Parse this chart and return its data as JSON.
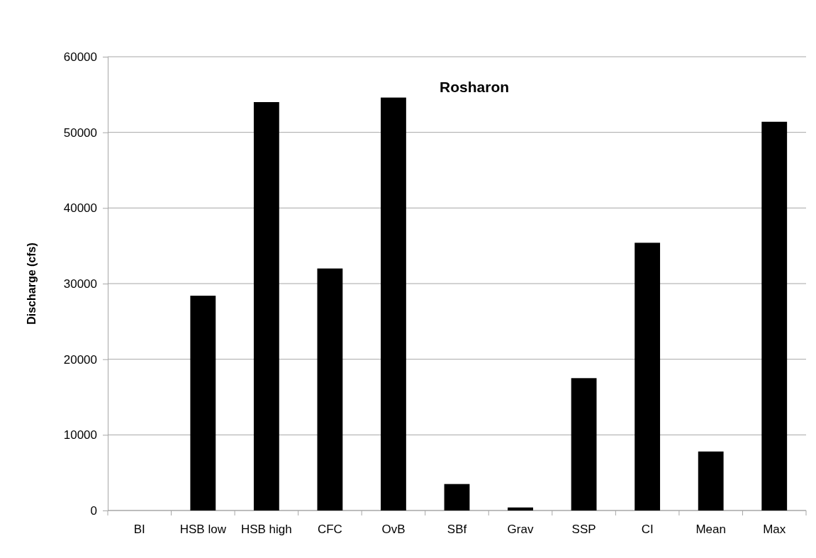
{
  "chart_data": {
    "type": "bar",
    "title": "Rosharon",
    "ylabel": "Discharge (cfs)",
    "categories": [
      "BI",
      "HSB low",
      "HSB high",
      "CFC",
      "OvB",
      "SBf",
      "Grav",
      "SSP",
      "CI",
      "Mean",
      "Max"
    ],
    "values": [
      0,
      28400,
      54000,
      32000,
      54600,
      3500,
      400,
      17500,
      35400,
      7800,
      51400
    ],
    "color": "#000000",
    "ylim": [
      0,
      60000
    ],
    "yticks": [
      0,
      10000,
      20000,
      30000,
      40000,
      50000,
      60000
    ],
    "grid": "y"
  }
}
